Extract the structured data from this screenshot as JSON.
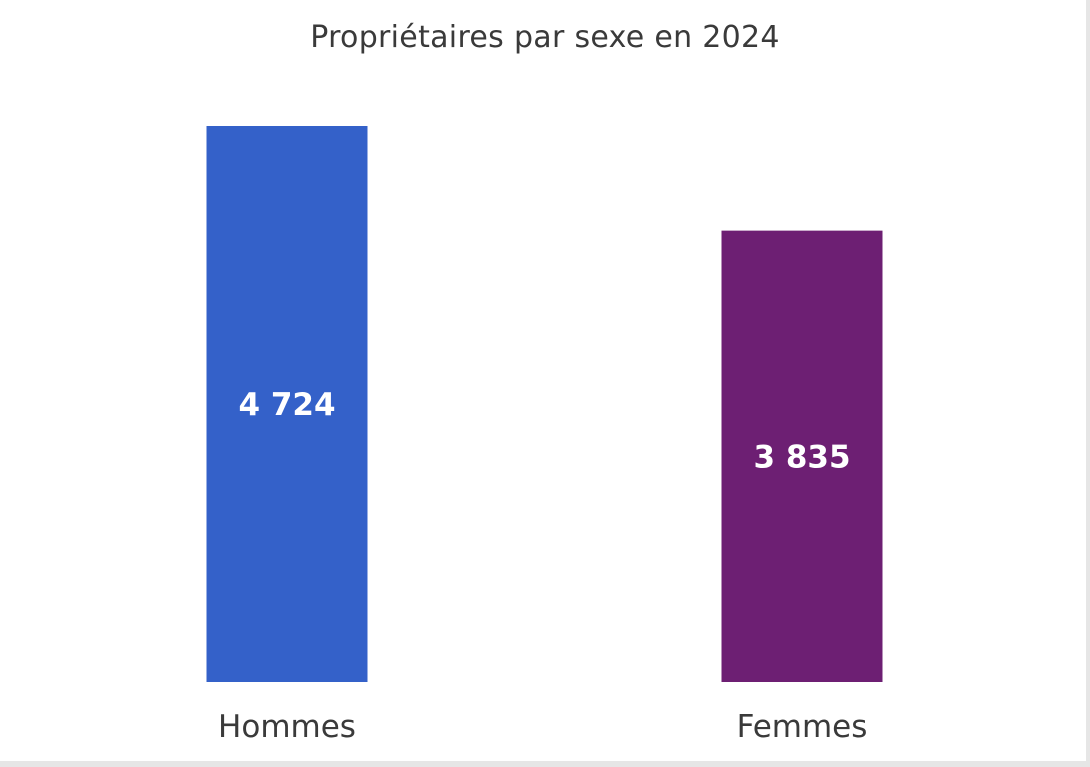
{
  "chart_data": {
    "type": "bar",
    "title": "Propriétaires par sexe en 2024",
    "categories": [
      "Hommes",
      "Femmes"
    ],
    "values": [
      4724,
      3835
    ],
    "value_labels": [
      "4 724",
      "3 835"
    ],
    "colors": [
      "#3461c9",
      "#6d1f73"
    ],
    "ylim": [
      0,
      4724
    ],
    "grid": false,
    "legend": "none",
    "xlabel": "",
    "ylabel": ""
  }
}
